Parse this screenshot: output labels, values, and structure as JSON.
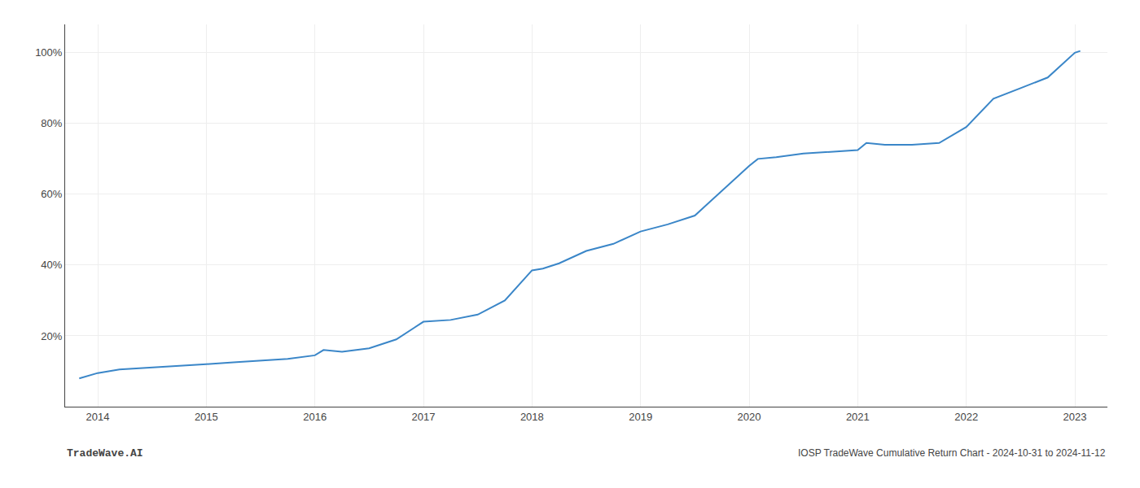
{
  "chart_data": {
    "type": "line",
    "x": [
      2013.83,
      2014.0,
      2014.2,
      2014.5,
      2014.75,
      2015.0,
      2015.25,
      2015.5,
      2015.75,
      2016.0,
      2016.08,
      2016.25,
      2016.5,
      2016.75,
      2017.0,
      2017.25,
      2017.5,
      2017.75,
      2018.0,
      2018.1,
      2018.25,
      2018.5,
      2018.75,
      2019.0,
      2019.25,
      2019.5,
      2019.75,
      2020.0,
      2020.08,
      2020.25,
      2020.5,
      2020.75,
      2021.0,
      2021.08,
      2021.25,
      2021.5,
      2021.75,
      2022.0,
      2022.25,
      2022.5,
      2022.75,
      2023.0,
      2023.05
    ],
    "values": [
      8.0,
      9.5,
      10.5,
      11.0,
      11.5,
      12.0,
      12.5,
      13.0,
      13.5,
      14.5,
      16.0,
      15.5,
      16.5,
      19.0,
      24.0,
      24.5,
      26.0,
      30.0,
      38.5,
      39.0,
      40.5,
      44.0,
      46.0,
      49.5,
      51.5,
      54.0,
      61.0,
      68.0,
      70.0,
      70.5,
      71.5,
      72.0,
      72.5,
      74.5,
      74.0,
      74.0,
      74.5,
      79.0,
      87.0,
      90.0,
      93.0,
      100.0,
      100.5
    ],
    "color": "#3a86c8",
    "xlim": [
      2013.7,
      2023.3
    ],
    "ylim": [
      0,
      108
    ],
    "xticks": [
      2014,
      2015,
      2016,
      2017,
      2018,
      2019,
      2020,
      2021,
      2022,
      2023
    ],
    "yticks": [
      {
        "value": 20,
        "label": "20%"
      },
      {
        "value": 40,
        "label": "40%"
      },
      {
        "value": 60,
        "label": "60%"
      },
      {
        "value": 80,
        "label": "80%"
      },
      {
        "value": 100,
        "label": "100%"
      }
    ],
    "grid": true,
    "annotations": [
      "TradeWave.AI",
      "IOSP TradeWave Cumulative Return Chart - 2024-10-31 to 2024-11-12"
    ]
  }
}
